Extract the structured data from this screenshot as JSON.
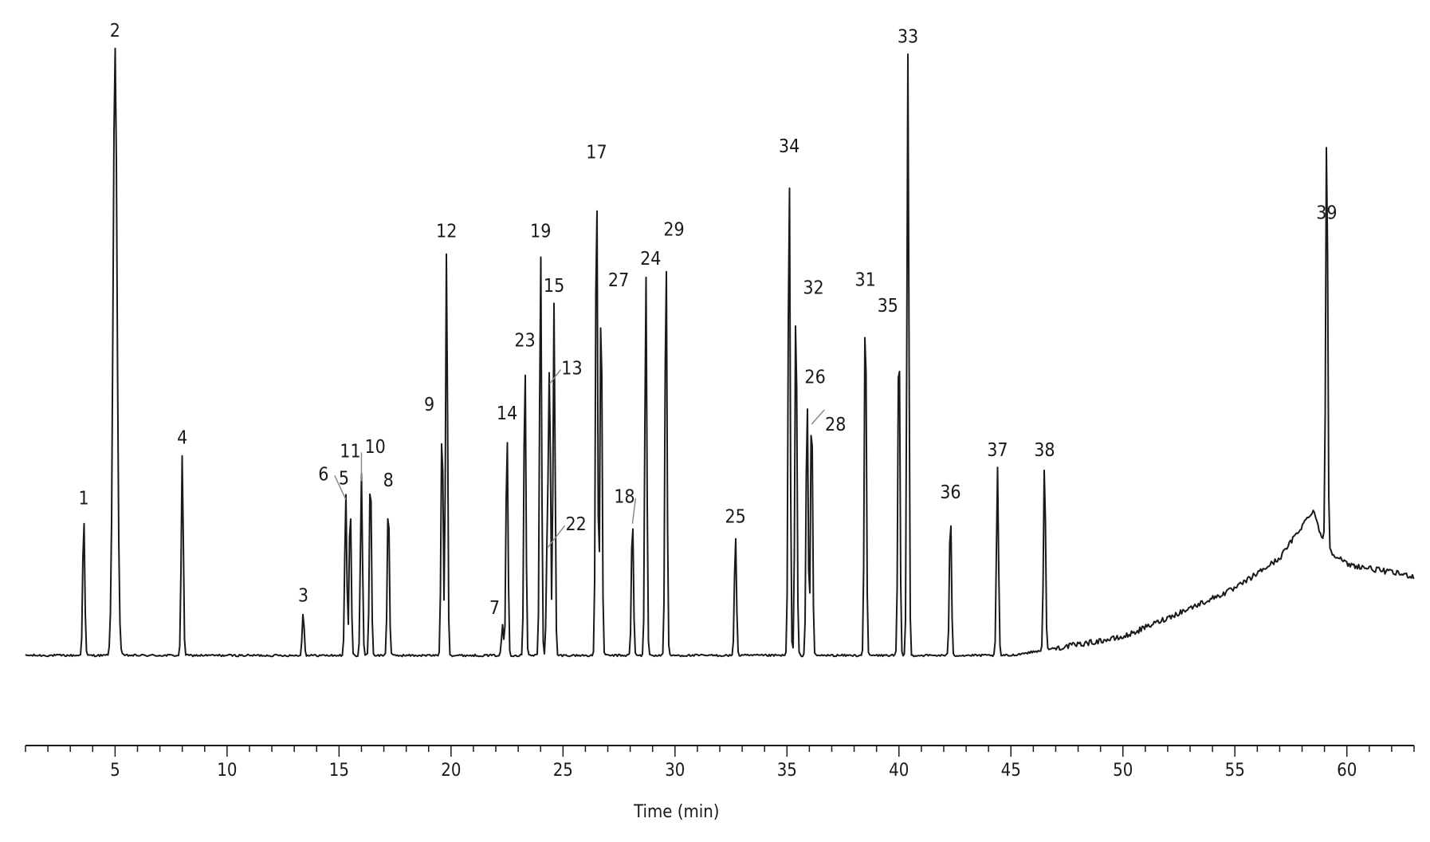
{
  "chart_data": {
    "type": "line",
    "title": "",
    "xlabel": "Time (min)",
    "ylabel": "",
    "xlim": [
      1,
      63
    ],
    "ylim": [
      0,
      100
    ],
    "xticks": [
      5,
      10,
      15,
      20,
      25,
      30,
      35,
      40,
      45,
      50,
      55,
      60
    ],
    "minor_tick_step": 1,
    "grid": false,
    "line_color": "#1a1a1a",
    "leader_color": "#8a8a8a",
    "peaks": [
      {
        "label": "1",
        "x": 3.6,
        "height": 23
      },
      {
        "label": "2",
        "x": 5.0,
        "height": 100,
        "off_scale": true
      },
      {
        "label": "4",
        "x": 8.0,
        "height": 33
      },
      {
        "label": "3",
        "x": 13.4,
        "height": 7
      },
      {
        "label": "6",
        "x": 15.3,
        "height": 27
      },
      {
        "label": "5",
        "x": 15.5,
        "height": 25
      },
      {
        "label": "11",
        "x": 16.0,
        "height": 30
      },
      {
        "label": "10",
        "x": 16.4,
        "height": 31
      },
      {
        "label": "8",
        "x": 17.2,
        "height": 26
      },
      {
        "label": "9",
        "x": 19.6,
        "height": 39
      },
      {
        "label": "12",
        "x": 19.8,
        "height": 67
      },
      {
        "label": "7",
        "x": 22.3,
        "height": 5
      },
      {
        "label": "14",
        "x": 22.5,
        "height": 37
      },
      {
        "label": "23",
        "x": 23.3,
        "height": 49
      },
      {
        "label": "19",
        "x": 24.0,
        "height": 67
      },
      {
        "label": "22",
        "x": 24.3,
        "height": 19
      },
      {
        "label": "13",
        "x": 24.4,
        "height": 46
      },
      {
        "label": "15",
        "x": 24.6,
        "height": 58
      },
      {
        "label": "17",
        "x": 26.5,
        "height": 80
      },
      {
        "label": "27",
        "x": 26.7,
        "height": 60
      },
      {
        "label": "18",
        "x": 28.1,
        "height": 23
      },
      {
        "label": "24",
        "x": 28.7,
        "height": 63
      },
      {
        "label": "29",
        "x": 29.6,
        "height": 67
      },
      {
        "label": "25",
        "x": 32.7,
        "height": 20
      },
      {
        "label": "34",
        "x": 35.1,
        "height": 81
      },
      {
        "label": "32",
        "x": 35.4,
        "height": 59
      },
      {
        "label": "26",
        "x": 35.9,
        "height": 43
      },
      {
        "label": "28",
        "x": 36.1,
        "height": 42
      },
      {
        "label": "31",
        "x": 38.5,
        "height": 59
      },
      {
        "label": "35",
        "x": 40.0,
        "height": 55
      },
      {
        "label": "33",
        "x": 40.4,
        "height": 99
      },
      {
        "label": "36",
        "x": 42.3,
        "height": 24
      },
      {
        "label": "37",
        "x": 44.4,
        "height": 31
      },
      {
        "label": "38",
        "x": 46.5,
        "height": 31
      },
      {
        "label": "39",
        "x": 59.1,
        "height": 70
      }
    ],
    "baseline_drift": [
      {
        "x": 1,
        "y": 0
      },
      {
        "x": 45,
        "y": 0
      },
      {
        "x": 50,
        "y": 3
      },
      {
        "x": 55,
        "y": 11
      },
      {
        "x": 57,
        "y": 16
      },
      {
        "x": 58.5,
        "y": 24
      },
      {
        "x": 59.0,
        "y": 18
      },
      {
        "x": 60,
        "y": 15
      },
      {
        "x": 63,
        "y": 13
      }
    ]
  }
}
